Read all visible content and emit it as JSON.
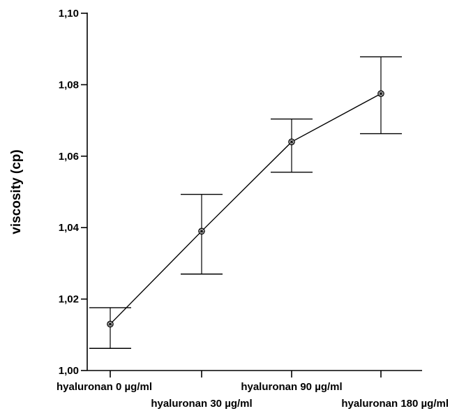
{
  "chart_data": {
    "type": "line",
    "title": "",
    "xlabel": "",
    "ylabel": "viscosity (cp)",
    "ylim": [
      1.0,
      1.1
    ],
    "yticks": [
      1.0,
      1.02,
      1.04,
      1.06,
      1.08,
      1.1
    ],
    "ytick_labels": [
      "1,00",
      "1,02",
      "1,04",
      "1,06",
      "1,08",
      "1,10"
    ],
    "grid": false,
    "legend": "none",
    "categories": [
      "hyaluronan 0 µg/ml",
      "hyaluronan 30 µg/ml",
      "hyaluronan 90 µg/ml",
      "hyaluronan 180 µg/ml"
    ],
    "series": [
      {
        "values": [
          1.013,
          1.039,
          1.064,
          1.0775
        ],
        "error_low": [
          1.0062,
          1.027,
          1.0555,
          1.0663
        ],
        "error_high": [
          1.0176,
          1.0493,
          1.0704,
          1.0878
        ]
      }
    ],
    "line_color": "#000000",
    "marker": "circle-cross"
  }
}
